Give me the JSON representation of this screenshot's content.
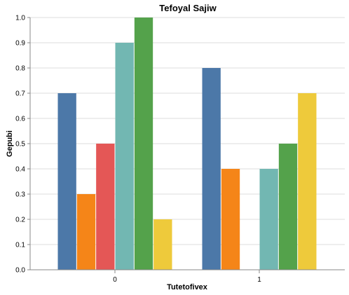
{
  "chart_data": {
    "type": "bar",
    "title": "Tefoyal Sajiw",
    "xlabel": "Tutetofivex",
    "ylabel": "Gepubi",
    "categories": [
      "0",
      "1"
    ],
    "ylim": [
      0,
      1.0
    ],
    "yticks": [
      "0.0",
      "0.1",
      "0.2",
      "0.3",
      "0.4",
      "0.5",
      "0.6",
      "0.7",
      "0.8",
      "0.9",
      "1.0"
    ],
    "grid": true,
    "legend": "none",
    "series": [
      {
        "values": [
          0.7,
          0.8
        ],
        "color": "#4c78a8"
      },
      {
        "values": [
          0.3,
          0.4
        ],
        "color": "#f58518"
      },
      {
        "values": [
          0.5,
          0.0
        ],
        "color": "#e45756"
      },
      {
        "values": [
          0.9,
          0.4
        ],
        "color": "#72b7b2"
      },
      {
        "values": [
          1.0,
          0.5
        ],
        "color": "#54a24b"
      },
      {
        "values": [
          0.2,
          0.7
        ],
        "color": "#eeca3b"
      }
    ]
  }
}
